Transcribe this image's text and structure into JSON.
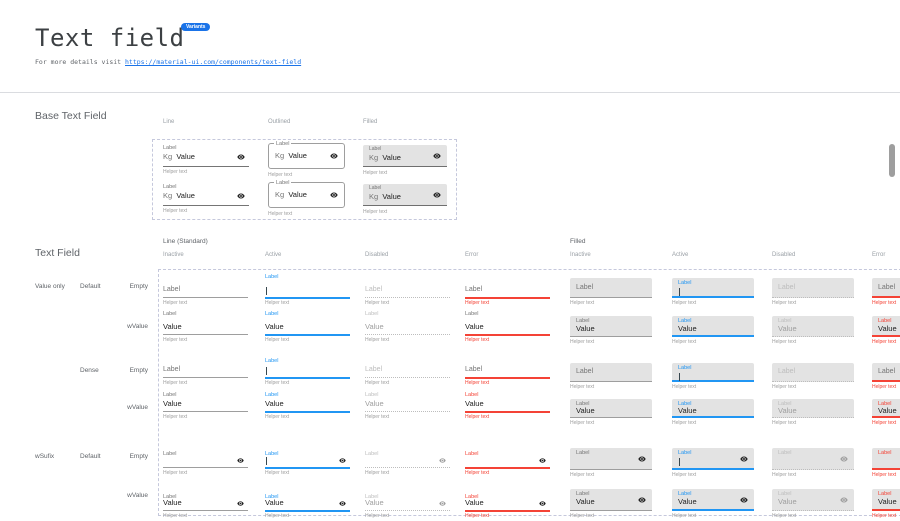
{
  "header": {
    "title": "Text field",
    "badge": "Variants",
    "link_prefix": "For more details visit ",
    "link_url": "https://material-ui.com/components/text-field"
  },
  "base_section": {
    "title": "Base Text Field",
    "columns": [
      "Line",
      "Outlined",
      "Filled"
    ],
    "field": {
      "label": "Label",
      "prefix": "Kg",
      "value": "Value",
      "helper": "Helper text"
    }
  },
  "matrix_section": {
    "title": "Text Field",
    "groups": [
      {
        "label": "Line (Standard)",
        "states": [
          "Inactive",
          "Active",
          "Disabled",
          "Error"
        ]
      },
      {
        "label": "Filled",
        "states": [
          "Inactive",
          "Active",
          "Disabled",
          "Error"
        ]
      }
    ],
    "row_labels": [
      {
        "category": "Value only",
        "size": "Default",
        "content": "Empty"
      },
      {
        "category": "",
        "size": "",
        "content": "wValue"
      },
      {
        "category": "",
        "size": "Dense",
        "content": "Empty"
      },
      {
        "category": "",
        "size": "",
        "content": "wValue"
      },
      {
        "category": "wSufix",
        "size": "Default",
        "content": "Empty"
      },
      {
        "category": "",
        "size": "",
        "content": "wValue"
      }
    ],
    "field": {
      "label": "Label",
      "value": "Value",
      "helper": "Helper text"
    }
  },
  "colors": {
    "primary": "#2196f3",
    "error": "#f44336",
    "label": "#757575",
    "disabled": "#bdbdbd",
    "text": "#212121",
    "helper": "#9e9e9e",
    "filled_bg": "#e3e3e3",
    "underline": "#9e9e9e",
    "underline_dark": "#6f6f6f",
    "icon": "#212121"
  }
}
